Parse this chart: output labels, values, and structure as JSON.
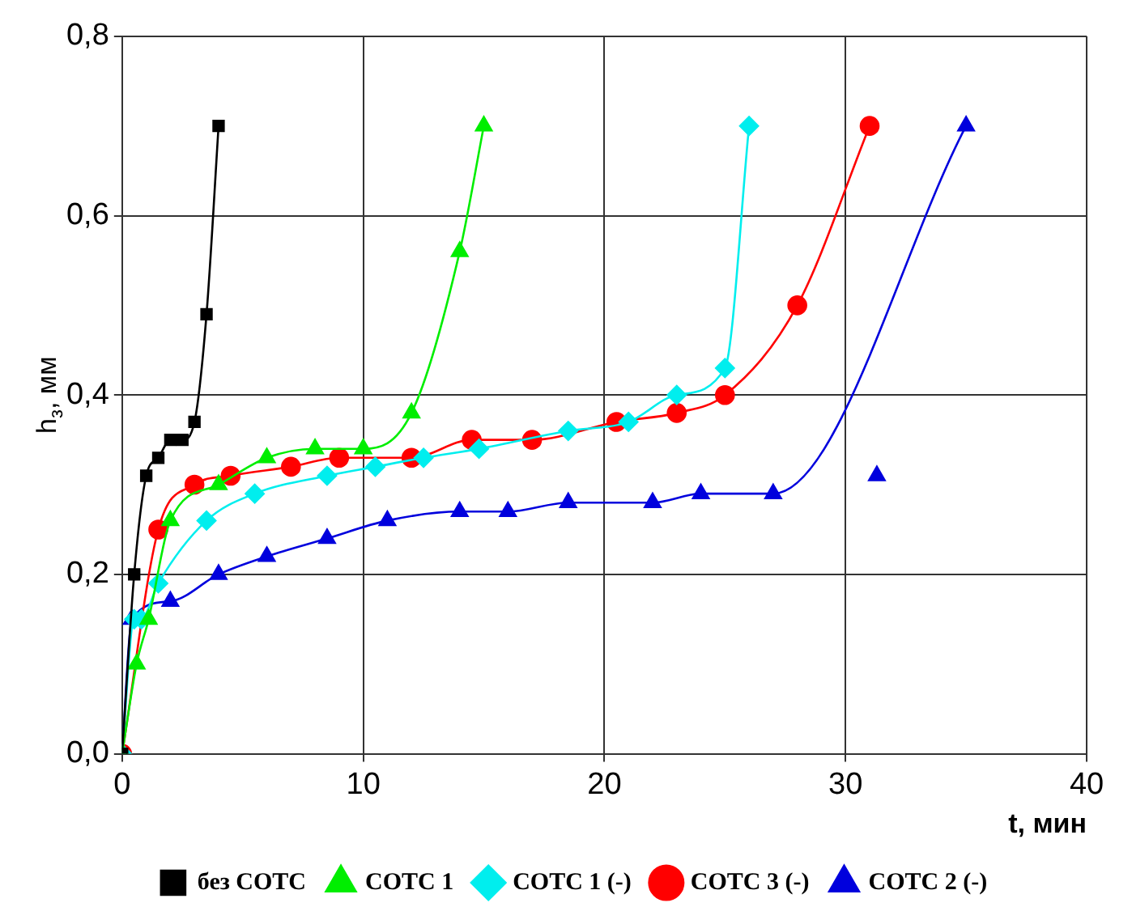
{
  "chart_data": {
    "type": "line",
    "xlabel": "t, мин",
    "ylabel": "h$_{з}$, мм",
    "xlim": [
      0,
      40
    ],
    "xticks": [
      0,
      10,
      20,
      30,
      40
    ],
    "ylim": [
      0,
      0.8
    ],
    "yticks": [
      {
        "value": 0,
        "label": "0,0"
      },
      {
        "value": 0.2,
        "label": "0,2"
      },
      {
        "value": 0.4,
        "label": "0,4"
      },
      {
        "value": 0.6,
        "label": "0,6"
      },
      {
        "value": 0.8,
        "label": "0,8"
      }
    ],
    "grid": true,
    "legend": "bottom",
    "series": [
      {
        "name": "без СОТС",
        "color": "#000000",
        "marker": "square",
        "x": [
          0,
          0.5,
          1.0,
          1.5,
          2,
          2.5,
          3,
          3.5,
          4
        ],
        "values": [
          0,
          0.2,
          0.31,
          0.33,
          0.35,
          0.35,
          0.37,
          0.49,
          0.7
        ]
      },
      {
        "name": "СОТС 1",
        "color": "#00ee00",
        "marker": "triangle",
        "x": [
          0,
          0.6,
          1.1,
          2.0,
          4,
          6,
          8,
          10,
          12,
          14,
          15
        ],
        "values": [
          0,
          0.1,
          0.15,
          0.26,
          0.3,
          0.33,
          0.34,
          0.34,
          0.38,
          0.56,
          0.7
        ]
      },
      {
        "name": "СОТС 1 (-)",
        "color": "#00eeee",
        "marker": "diamond",
        "x": [
          0,
          0.5,
          0.8,
          1.5,
          3.5,
          5.5,
          8.5,
          10.5,
          12.5,
          14.8,
          18.5,
          21,
          23,
          25,
          26
        ],
        "values": [
          0,
          0.15,
          0.15,
          0.19,
          0.26,
          0.29,
          0.31,
          0.32,
          0.33,
          0.34,
          0.36,
          0.37,
          0.4,
          0.43,
          0.7
        ]
      },
      {
        "name": "СОТС 3 (-)",
        "color": "#ff0000",
        "marker": "circle",
        "x": [
          0,
          1.5,
          3,
          4.5,
          7,
          9,
          12,
          14.5,
          17,
          20.5,
          23,
          25,
          28,
          31
        ],
        "values": [
          0,
          0.25,
          0.3,
          0.31,
          0.32,
          0.33,
          0.33,
          0.35,
          0.35,
          0.37,
          0.38,
          0.4,
          0.5,
          0.7
        ]
      },
      {
        "name": "СОТС 2 (-)",
        "color": "#0000dd",
        "marker": "triangle",
        "x": [
          0,
          0.4,
          2,
          4,
          6,
          8.5,
          11,
          14,
          16,
          18.5,
          22,
          24,
          27,
          35
        ],
        "values": [
          0,
          0.15,
          0.17,
          0.2,
          0.22,
          0.24,
          0.26,
          0.27,
          0.27,
          0.28,
          0.28,
          0.29,
          0.29,
          0.7
        ]
      },
      {
        "type": "scatter",
        "color": "#0000dd",
        "marker": "triangle",
        "x": [
          31.3
        ],
        "values": [
          0.31
        ]
      }
    ]
  }
}
